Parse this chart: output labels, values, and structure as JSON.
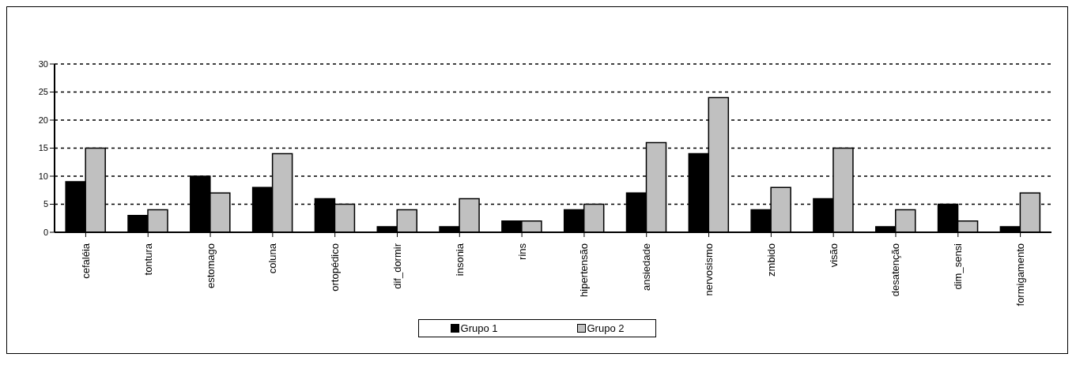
{
  "chart_data": {
    "type": "bar",
    "categories": [
      "cefaléia",
      "tontura",
      "estomago",
      "coluna",
      "ortopédico",
      "dif_dormir",
      "insonia",
      "rins",
      "hipertensão",
      "ansiedade",
      "nervosismo",
      "zmbido",
      "visão",
      "desatenção",
      "dim_sensi",
      "formigamento"
    ],
    "series": [
      {
        "name": "Grupo 1",
        "color": "#000000",
        "values": [
          9,
          3,
          10,
          8,
          6,
          1,
          1,
          2,
          4,
          7,
          14,
          4,
          6,
          1,
          5,
          1
        ]
      },
      {
        "name": "Grupo 2",
        "color": "#c0c0c0",
        "values": [
          15,
          4,
          7,
          14,
          5,
          4,
          6,
          2,
          5,
          16,
          24,
          8,
          15,
          4,
          2,
          7
        ]
      }
    ],
    "ylim": [
      0,
      30
    ],
    "yticks": [
      0,
      5,
      10,
      15,
      20,
      25,
      30
    ],
    "grid": "y",
    "legend": "bottom"
  }
}
